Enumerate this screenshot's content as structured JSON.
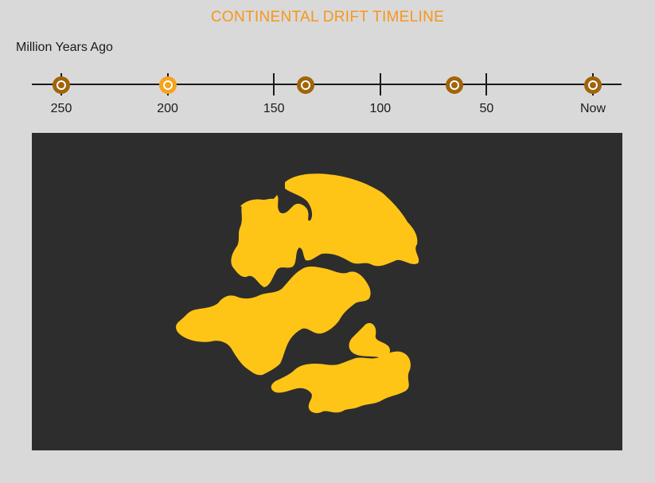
{
  "header": {
    "title": "CONTINENTAL DRIFT TIMELINE"
  },
  "timeline": {
    "axis_label": "Million Years Ago",
    "ticks": [
      {
        "label": "250",
        "value": 250
      },
      {
        "label": "200",
        "value": 200
      },
      {
        "label": "150",
        "value": 150
      },
      {
        "label": "100",
        "value": 100
      },
      {
        "label": "50",
        "value": 50
      },
      {
        "label": "Now",
        "value": 0
      }
    ],
    "markers": [
      {
        "value": 250,
        "active": false
      },
      {
        "value": 200,
        "active": true
      },
      {
        "value": 135,
        "active": false
      },
      {
        "value": 65,
        "active": false
      },
      {
        "value": 0,
        "active": false
      }
    ],
    "range": [
      250,
      0
    ]
  },
  "colors": {
    "accent": "#f7961e",
    "marker_active": "#f7a21b",
    "marker_inactive": "#a0640a",
    "landmass": "#ffc516",
    "map_background": "#2d2d2d",
    "page_background": "#d9d9d9"
  },
  "map": {
    "selected_era": 200
  }
}
